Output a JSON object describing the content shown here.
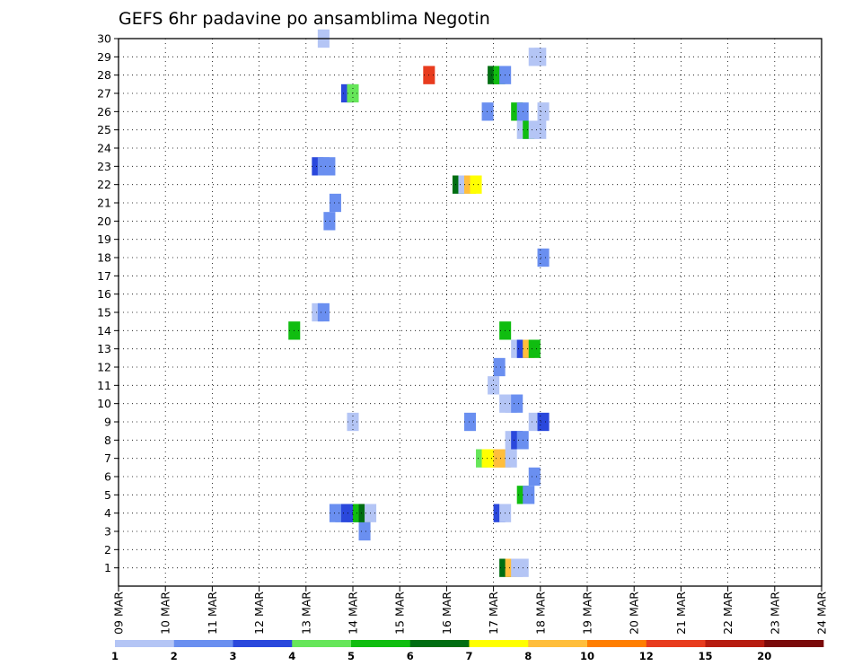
{
  "chart_data": {
    "type": "heatmap",
    "title": "GEFS 6hr padavine po ansamblima Negotin",
    "x_labels": [
      "09 MAR",
      "10 MAR",
      "11 MAR",
      "12 MAR",
      "13 MAR",
      "14 MAR",
      "15 MAR",
      "16 MAR",
      "17 MAR",
      "18 MAR",
      "19 MAR",
      "20 MAR",
      "21 MAR",
      "22 MAR",
      "23 MAR",
      "24 MAR"
    ],
    "x_range_days": [
      0,
      15
    ],
    "y_labels": [
      1,
      2,
      3,
      4,
      5,
      6,
      7,
      8,
      9,
      10,
      11,
      12,
      13,
      14,
      15,
      16,
      17,
      18,
      19,
      20,
      21,
      22,
      23,
      24,
      25,
      26,
      27,
      28,
      29,
      30
    ],
    "y_range": [
      0,
      30
    ],
    "time_step_hours": 6,
    "colorbar": {
      "labels": [
        "1",
        "2",
        "3",
        "4",
        "5",
        "6",
        "7",
        "8",
        "10",
        "12",
        "15",
        "20"
      ],
      "colors": [
        "#b4c5f5",
        "#6a8ff0",
        "#2a48dc",
        "#66e65a",
        "#10bd10",
        "#006e12",
        "#ffff00",
        "#ffbe3c",
        "#ff7e00",
        "#e83c1e",
        "#b71c10",
        "#7a0a0a"
      ]
    },
    "cells": [
      {
        "m": 1,
        "s": [
          [
            32.5,
            6
          ],
          [
            33,
            8
          ],
          [
            33.5,
            1
          ],
          [
            34,
            1
          ]
        ]
      },
      {
        "m": 3,
        "s": [
          [
            20.5,
            2
          ]
        ]
      },
      {
        "m": 4,
        "s": [
          [
            18,
            2
          ],
          [
            18.5,
            2
          ],
          [
            19,
            3
          ],
          [
            19.5,
            3
          ],
          [
            20,
            5
          ],
          [
            20.5,
            6
          ],
          [
            21,
            1
          ],
          [
            32,
            3
          ],
          [
            32.5,
            1
          ]
        ]
      },
      {
        "m": 5,
        "s": [
          [
            34,
            5
          ],
          [
            34.5,
            2
          ]
        ]
      },
      {
        "m": 6,
        "s": [
          [
            35,
            2
          ]
        ]
      },
      {
        "m": 7,
        "s": [
          [
            30.5,
            4
          ],
          [
            31,
            7
          ],
          [
            31.5,
            7
          ],
          [
            32,
            8
          ],
          [
            32.5,
            8
          ],
          [
            33,
            1
          ]
        ]
      },
      {
        "m": 8,
        "s": [
          [
            33,
            1
          ],
          [
            33.5,
            3
          ],
          [
            34,
            2
          ]
        ]
      },
      {
        "m": 9,
        "s": [
          [
            19.5,
            1
          ],
          [
            29.5,
            2
          ],
          [
            35,
            1
          ],
          [
            35.75,
            3
          ]
        ]
      },
      {
        "m": 10,
        "s": [
          [
            32.5,
            1
          ],
          [
            33,
            1
          ],
          [
            33.5,
            2
          ]
        ]
      },
      {
        "m": 11,
        "s": [
          [
            31.5,
            1
          ]
        ]
      },
      {
        "m": 12,
        "s": [
          [
            32,
            2
          ]
        ]
      },
      {
        "m": 13,
        "s": [
          [
            33.5,
            1
          ],
          [
            34,
            3
          ],
          [
            34.5,
            8
          ],
          [
            35,
            5
          ]
        ]
      },
      {
        "m": 14,
        "s": [
          [
            14.5,
            5
          ],
          [
            32.5,
            5
          ]
        ]
      },
      {
        "m": 15,
        "s": [
          [
            16.5,
            1
          ],
          [
            17,
            2
          ]
        ]
      },
      {
        "m": 18,
        "s": [
          [
            35.75,
            2
          ]
        ]
      },
      {
        "m": 20,
        "s": [
          [
            17.5,
            2
          ]
        ]
      },
      {
        "m": 21,
        "s": [
          [
            18,
            2
          ]
        ]
      },
      {
        "m": 22,
        "s": [
          [
            28.5,
            6
          ],
          [
            29,
            1
          ],
          [
            29.5,
            8
          ],
          [
            30,
            7
          ]
        ]
      },
      {
        "m": 23,
        "s": [
          [
            16.5,
            3
          ],
          [
            17,
            2
          ],
          [
            17.5,
            2
          ]
        ]
      },
      {
        "m": 25,
        "s": [
          [
            34,
            1
          ],
          [
            34.5,
            5
          ],
          [
            35,
            1
          ],
          [
            35.5,
            1
          ]
        ]
      },
      {
        "m": 26,
        "s": [
          [
            31,
            2
          ],
          [
            33.5,
            5
          ],
          [
            34,
            2
          ],
          [
            35.75,
            1
          ]
        ]
      },
      {
        "m": 27,
        "s": [
          [
            19,
            3
          ],
          [
            19.5,
            4
          ]
        ]
      },
      {
        "m": 28,
        "s": [
          [
            26,
            10
          ],
          [
            31.5,
            6
          ],
          [
            32,
            5
          ],
          [
            32.5,
            2
          ]
        ]
      },
      {
        "m": 29,
        "s": [
          [
            35,
            1
          ],
          [
            35.5,
            1
          ]
        ]
      },
      {
        "m": 30,
        "s": [
          [
            17,
            1
          ]
        ]
      }
    ]
  }
}
